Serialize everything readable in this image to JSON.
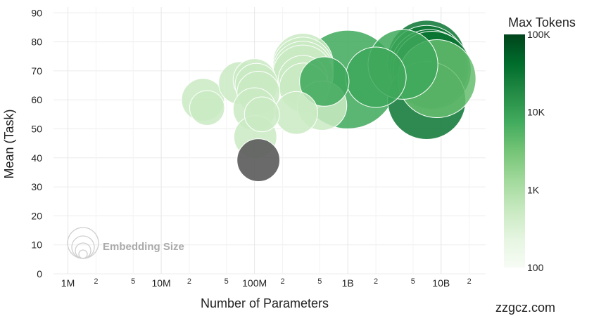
{
  "chart_data": {
    "type": "scatter",
    "xlabel": "Number of Parameters",
    "ylabel": "Mean (Task)",
    "x_scale": "log",
    "xlim": [
      700000.0,
      30000000000.0
    ],
    "ylim": [
      0,
      92
    ],
    "x_major_ticks": [
      {
        "value": 1000000.0,
        "label": "1M"
      },
      {
        "value": 10000000.0,
        "label": "10M"
      },
      {
        "value": 100000000.0,
        "label": "100M"
      },
      {
        "value": 1000000000.0,
        "label": "1B"
      },
      {
        "value": 10000000000.0,
        "label": "10B"
      }
    ],
    "x_minor_ticks": [
      {
        "value": 2000000.0,
        "label": "2"
      },
      {
        "value": 5000000.0,
        "label": "5"
      },
      {
        "value": 20000000.0,
        "label": "2"
      },
      {
        "value": 50000000.0,
        "label": "5"
      },
      {
        "value": 200000000.0,
        "label": "2"
      },
      {
        "value": 500000000.0,
        "label": "5"
      },
      {
        "value": 2000000000.0,
        "label": "2"
      },
      {
        "value": 5000000000.0,
        "label": "5"
      },
      {
        "value": 20000000000.0,
        "label": "2"
      }
    ],
    "y_ticks": [
      "0",
      "10",
      "20",
      "30",
      "40",
      "50",
      "60",
      "70",
      "80",
      "90"
    ],
    "colorbar": {
      "title": "Max Tokens",
      "scale": "log",
      "range": [
        100,
        100000
      ],
      "ticks": [
        {
          "value": 100000,
          "label": "100K"
        },
        {
          "value": 10000,
          "label": "10K"
        },
        {
          "value": 1000,
          "label": "1K"
        },
        {
          "value": 100,
          "label": "100"
        }
      ]
    },
    "size_legend_label": "Embedding Size",
    "points": [
      {
        "x": 28000000.0,
        "y": 60,
        "size": 384,
        "tokens": 512
      },
      {
        "x": 31000000.0,
        "y": 57.2,
        "size": 256,
        "tokens": 512
      },
      {
        "x": 70000000.0,
        "y": 65.8,
        "size": 384,
        "tokens": 512
      },
      {
        "x": 100000000.0,
        "y": 66.8,
        "size": 384,
        "tokens": 512
      },
      {
        "x": 105000000.0,
        "y": 65.2,
        "size": 384,
        "tokens": 512
      },
      {
        "x": 110000000.0,
        "y": 62.5,
        "size": 384,
        "tokens": 512
      },
      {
        "x": 100000000.0,
        "y": 56.8,
        "size": 384,
        "tokens": 512
      },
      {
        "x": 120000000.0,
        "y": 55,
        "size": 256,
        "tokens": 512
      },
      {
        "x": 102000000.0,
        "y": 47.2,
        "size": 384,
        "tokens": 512
      },
      {
        "x": 110000000.0,
        "y": 39.2,
        "size": 384,
        "tokens": null
      },
      {
        "x": 280000000.0,
        "y": 55.5,
        "size": 384,
        "tokens": 512
      },
      {
        "x": 330000000.0,
        "y": 72.5,
        "size": 768,
        "tokens": 512
      },
      {
        "x": 330000000.0,
        "y": 71.2,
        "size": 768,
        "tokens": 512
      },
      {
        "x": 330000000.0,
        "y": 69.8,
        "size": 768,
        "tokens": 512
      },
      {
        "x": 330000000.0,
        "y": 68.5,
        "size": 768,
        "tokens": 512
      },
      {
        "x": 330000000.0,
        "y": 66.8,
        "size": 512,
        "tokens": 512
      },
      {
        "x": 340000000.0,
        "y": 64.2,
        "size": 512,
        "tokens": 512
      },
      {
        "x": 530000000.0,
        "y": 58,
        "size": 512,
        "tokens": 514
      },
      {
        "x": 560000000.0,
        "y": 66.3,
        "size": 512,
        "tokens": 8192
      },
      {
        "x": 1000000000.0,
        "y": 67,
        "size": 2048,
        "tokens": 8192
      },
      {
        "x": 2000000000.0,
        "y": 67.8,
        "size": 768,
        "tokens": 8192
      },
      {
        "x": 3900000000.0,
        "y": 72.2,
        "size": 1024,
        "tokens": 8192
      },
      {
        "x": 7000000000.0,
        "y": 74,
        "size": 1280,
        "tokens": 32768
      },
      {
        "x": 7000000000.0,
        "y": 72.2,
        "size": 1280,
        "tokens": 32768
      },
      {
        "x": 7500000000.0,
        "y": 70.8,
        "size": 1280,
        "tokens": 32768
      },
      {
        "x": 8000000000.0,
        "y": 70.2,
        "size": 1280,
        "tokens": 32768
      },
      {
        "x": 7000000000.0,
        "y": 59.8,
        "size": 1280,
        "tokens": 32768
      },
      {
        "x": 9000000000.0,
        "y": 67.3,
        "size": 1280,
        "tokens": 4096
      }
    ]
  },
  "watermark": "zzgcz.com"
}
